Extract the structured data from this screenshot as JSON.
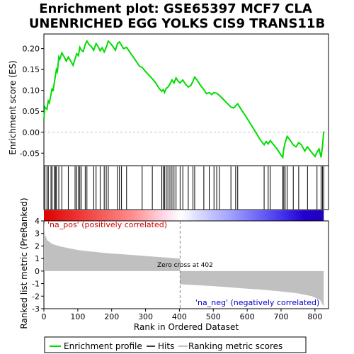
{
  "chart_data": {
    "type": "line",
    "title_lines": [
      "Enrichment plot: GSE65397 MCF7 CLA",
      "UNENRICHED EGG YOLKS CIS9 TRANS11B"
    ],
    "es_panel": {
      "ylabel": "Enrichment score (ES)",
      "ylim": [
        -0.08,
        0.235
      ],
      "yticks": [
        0.2,
        0.15,
        0.1,
        0.05,
        0.0,
        -0.05
      ],
      "ytick_labels": [
        "0.20",
        "0.15",
        "0.10",
        "0.05",
        "0.00",
        "-0.05"
      ],
      "series_name": "Enrichment profile",
      "color": "#00dd00",
      "points": [
        [
          0,
          0.032
        ],
        [
          3,
          0.06
        ],
        [
          9,
          0.055
        ],
        [
          13,
          0.075
        ],
        [
          16,
          0.07
        ],
        [
          21,
          0.09
        ],
        [
          24,
          0.105
        ],
        [
          27,
          0.098
        ],
        [
          31,
          0.12
        ],
        [
          34,
          0.135
        ],
        [
          37,
          0.15
        ],
        [
          40,
          0.145
        ],
        [
          44,
          0.18
        ],
        [
          47,
          0.175
        ],
        [
          53,
          0.19
        ],
        [
          60,
          0.18
        ],
        [
          66,
          0.17
        ],
        [
          72,
          0.18
        ],
        [
          78,
          0.172
        ],
        [
          86,
          0.16
        ],
        [
          92,
          0.175
        ],
        [
          97,
          0.188
        ],
        [
          102,
          0.183
        ],
        [
          106,
          0.203
        ],
        [
          110,
          0.197
        ],
        [
          116,
          0.193
        ],
        [
          122,
          0.21
        ],
        [
          127,
          0.218
        ],
        [
          133,
          0.21
        ],
        [
          140,
          0.205
        ],
        [
          147,
          0.196
        ],
        [
          154,
          0.212
        ],
        [
          160,
          0.205
        ],
        [
          166,
          0.195
        ],
        [
          172,
          0.202
        ],
        [
          178,
          0.192
        ],
        [
          184,
          0.203
        ],
        [
          190,
          0.218
        ],
        [
          197,
          0.212
        ],
        [
          204,
          0.205
        ],
        [
          211,
          0.196
        ],
        [
          217,
          0.212
        ],
        [
          223,
          0.216
        ],
        [
          229,
          0.208
        ],
        [
          235,
          0.2
        ],
        [
          244,
          0.203
        ],
        [
          255,
          0.19
        ],
        [
          268,
          0.175
        ],
        [
          282,
          0.158
        ],
        [
          290,
          0.155
        ],
        [
          300,
          0.145
        ],
        [
          312,
          0.135
        ],
        [
          320,
          0.128
        ],
        [
          330,
          0.118
        ],
        [
          340,
          0.105
        ],
        [
          348,
          0.098
        ],
        [
          352,
          0.102
        ],
        [
          356,
          0.095
        ],
        [
          361,
          0.105
        ],
        [
          366,
          0.108
        ],
        [
          372,
          0.115
        ],
        [
          378,
          0.125
        ],
        [
          384,
          0.118
        ],
        [
          390,
          0.13
        ],
        [
          396,
          0.122
        ],
        [
          402,
          0.118
        ],
        [
          410,
          0.125
        ],
        [
          418,
          0.115
        ],
        [
          426,
          0.108
        ],
        [
          434,
          0.112
        ],
        [
          440,
          0.122
        ],
        [
          445,
          0.132
        ],
        [
          452,
          0.125
        ],
        [
          460,
          0.115
        ],
        [
          466,
          0.108
        ],
        [
          472,
          0.102
        ],
        [
          480,
          0.092
        ],
        [
          488,
          0.095
        ],
        [
          495,
          0.09
        ],
        [
          502,
          0.095
        ],
        [
          510,
          0.093
        ],
        [
          518,
          0.088
        ],
        [
          528,
          0.08
        ],
        [
          540,
          0.07
        ],
        [
          552,
          0.06
        ],
        [
          560,
          0.058
        ],
        [
          566,
          0.063
        ],
        [
          572,
          0.068
        ],
        [
          582,
          0.055
        ],
        [
          596,
          0.038
        ],
        [
          610,
          0.02
        ],
        [
          625,
          0.0
        ],
        [
          640,
          -0.02
        ],
        [
          650,
          -0.03
        ],
        [
          656,
          -0.022
        ],
        [
          662,
          -0.028
        ],
        [
          668,
          -0.02
        ],
        [
          676,
          -0.028
        ],
        [
          688,
          -0.04
        ],
        [
          700,
          -0.055
        ],
        [
          705,
          -0.06
        ],
        [
          708,
          -0.04
        ],
        [
          712,
          -0.025
        ],
        [
          718,
          -0.01
        ],
        [
          726,
          -0.018
        ],
        [
          736,
          -0.03
        ],
        [
          744,
          -0.035
        ],
        [
          752,
          -0.025
        ],
        [
          760,
          -0.03
        ],
        [
          770,
          -0.045
        ],
        [
          778,
          -0.035
        ],
        [
          790,
          -0.048
        ],
        [
          800,
          -0.058
        ],
        [
          806,
          -0.048
        ],
        [
          812,
          -0.04
        ],
        [
          818,
          -0.06
        ],
        [
          822,
          -0.035
        ],
        [
          826,
          0.002
        ]
      ]
    },
    "hits": {
      "label": "Hits",
      "color": "#000000",
      "ranks": [
        3,
        9,
        13,
        21,
        24,
        31,
        34,
        37,
        44,
        53,
        72,
        92,
        97,
        102,
        106,
        110,
        122,
        127,
        147,
        154,
        166,
        178,
        184,
        190,
        217,
        223,
        229,
        244,
        290,
        320,
        348,
        352,
        356,
        361,
        366,
        372,
        378,
        384,
        390,
        402,
        410,
        426,
        440,
        445,
        472,
        488,
        502,
        510,
        518,
        552,
        566,
        572,
        650,
        662,
        668,
        705,
        708,
        712,
        718,
        736,
        752,
        778,
        806,
        818,
        822,
        826
      ]
    },
    "rank_panel": {
      "ylabel": "Ranked list metric (PreRanked)",
      "xlabel": "Rank in Ordered Dataset",
      "xlim": [
        0,
        840
      ],
      "xticks": [
        0,
        100,
        200,
        300,
        400,
        500,
        600,
        700,
        800
      ],
      "ylim": [
        -3,
        4
      ],
      "yticks": [
        4,
        3,
        2,
        1,
        0,
        -1,
        -2,
        -3
      ],
      "zero_cross_label": "Zero cross at 402",
      "zero_cross_rank": 402,
      "pos_label": "'na_pos' (positively correlated)",
      "neg_label": "'na_neg' (negatively correlated)",
      "pos_color": "#cc0000",
      "neg_color": "#0000cc",
      "fill_color": "#c0c0c0",
      "metric_curve": [
        [
          0,
          3.9
        ],
        [
          3,
          2.9
        ],
        [
          10,
          2.45
        ],
        [
          25,
          2.15
        ],
        [
          50,
          1.95
        ],
        [
          100,
          1.68
        ],
        [
          150,
          1.52
        ],
        [
          200,
          1.4
        ],
        [
          250,
          1.3
        ],
        [
          300,
          1.2
        ],
        [
          350,
          1.1
        ],
        [
          401,
          1.0
        ],
        [
          402,
          -1.05
        ],
        [
          450,
          -1.12
        ],
        [
          500,
          -1.2
        ],
        [
          550,
          -1.3
        ],
        [
          600,
          -1.4
        ],
        [
          650,
          -1.5
        ],
        [
          700,
          -1.62
        ],
        [
          750,
          -1.78
        ],
        [
          790,
          -2.0
        ],
        [
          815,
          -2.3
        ],
        [
          826,
          -2.85
        ]
      ],
      "total_ranks": 826
    },
    "legend": {
      "entries": [
        {
          "label": "Enrichment profile",
          "color": "#00dd00",
          "kind": "line"
        },
        {
          "label": "Hits",
          "color": "#000000",
          "kind": "line"
        },
        {
          "label": "Ranking metric scores",
          "color": "#c0c0c0",
          "kind": "line"
        }
      ]
    }
  }
}
